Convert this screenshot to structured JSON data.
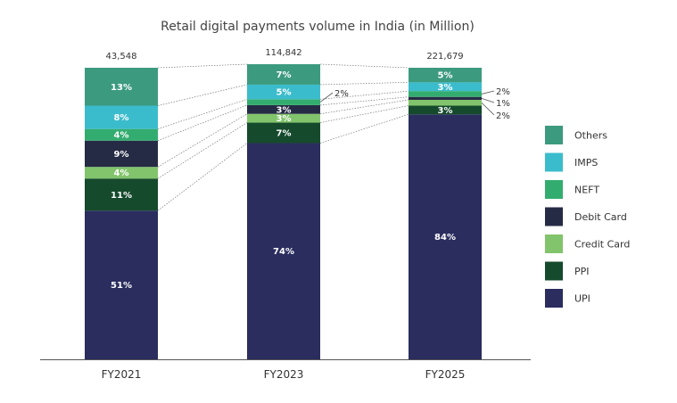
{
  "chart_data": {
    "type": "bar",
    "stacked": true,
    "normalized": true,
    "title": "Retail digital payments volume in India (in Million)",
    "categories": [
      "FY2021",
      "FY2023",
      "FY2025"
    ],
    "totals": [
      "43,548",
      "114,842",
      "221,679"
    ],
    "total_values": [
      43548,
      114842,
      221679
    ],
    "series": [
      {
        "name": "UPI",
        "color": "#2a2d5e",
        "values": [
          51,
          74,
          84
        ],
        "labels": [
          "51%",
          "74%",
          "84%"
        ]
      },
      {
        "name": "PPI",
        "color": "#154a2c",
        "values": [
          11,
          7,
          3
        ],
        "labels": [
          "11%",
          "7%",
          "3%"
        ]
      },
      {
        "name": "Credit Card",
        "color": "#82c46c",
        "values": [
          4,
          3,
          2
        ],
        "labels": [
          "4%",
          "3%",
          "2%"
        ]
      },
      {
        "name": "Debit Card",
        "color": "#262b45",
        "values": [
          9,
          3,
          1
        ],
        "labels": [
          "9%",
          "3%",
          "1%"
        ]
      },
      {
        "name": "NEFT",
        "color": "#33ad6f",
        "values": [
          4,
          2,
          2
        ],
        "labels": [
          "4%",
          "2%",
          "2%"
        ]
      },
      {
        "name": "IMPS",
        "color": "#3bbccc",
        "values": [
          8,
          5,
          3
        ],
        "labels": [
          "8%",
          "5%",
          "3%"
        ]
      },
      {
        "name": "Others",
        "color": "#3c9a7f",
        "values": [
          13,
          7,
          5
        ],
        "labels": [
          "13%",
          "7%",
          "5%"
        ]
      }
    ],
    "legend_order": [
      "Others",
      "IMPS",
      "NEFT",
      "Debit Card",
      "Credit Card",
      "PPI",
      "UPI"
    ],
    "legend_position": "right",
    "grid": false
  }
}
